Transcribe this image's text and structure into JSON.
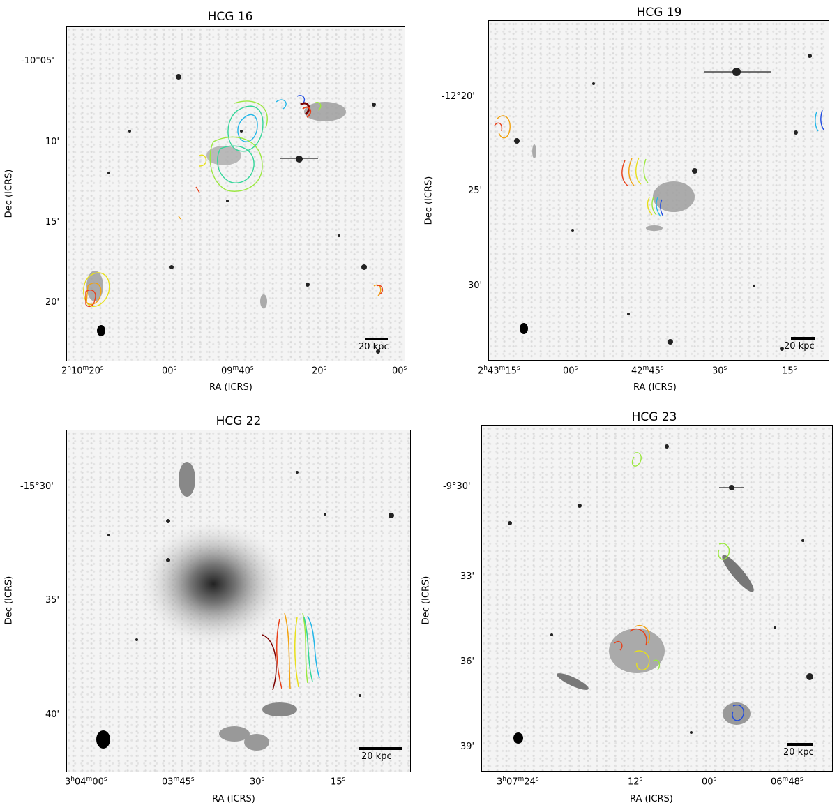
{
  "panels": {
    "p1": {
      "title": "HCG 16",
      "xlabel": "RA (ICRS)",
      "ylabel": "Dec (ICRS)",
      "yticks": [
        "-10°05'",
        "10'",
        "15'",
        "20'"
      ],
      "xticks": {
        "t0_a": "2",
        "t0_b": "h",
        "t0_c": "10",
        "t0_d": "m",
        "t0_e": "20",
        "t0_f": "s",
        "t1_a": "00",
        "t1_b": "s",
        "t2_a": "09",
        "t2_b": "m",
        "t2_c": "40",
        "t2_d": "s",
        "t3_a": "20",
        "t3_b": "s",
        "t4_a": "00",
        "t4_b": "s"
      },
      "scale": "20 kpc"
    },
    "p2": {
      "title": "HCG 19",
      "xlabel": "RA (ICRS)",
      "ylabel": "Dec (ICRS)",
      "yticks": [
        "-12°20'",
        "25'",
        "30'"
      ],
      "xticks": {
        "t0_a": "2",
        "t0_b": "h",
        "t0_c": "43",
        "t0_d": "m",
        "t0_e": "15",
        "t0_f": "s",
        "t1_a": "00",
        "t1_b": "s",
        "t2_a": "42",
        "t2_b": "m",
        "t2_c": "45",
        "t2_d": "s",
        "t3_a": "30",
        "t3_b": "s",
        "t4_a": "15",
        "t4_b": "s"
      },
      "scale": "20 kpc"
    },
    "p3": {
      "title": "HCG 22",
      "xlabel": "RA (ICRS)",
      "ylabel": "Dec (ICRS)",
      "yticks": [
        "-15°30'",
        "35'",
        "40'"
      ],
      "xticks": {
        "t0_a": "3",
        "t0_b": "h",
        "t0_c": "04",
        "t0_d": "m",
        "t0_e": "00",
        "t0_f": "s",
        "t1_a": "03",
        "t1_b": "m",
        "t1_c": "45",
        "t1_d": "s",
        "t2_a": "30",
        "t2_b": "s",
        "t3_a": "15",
        "t3_b": "s"
      },
      "scale": "20 kpc"
    },
    "p4": {
      "title": "HCG 23",
      "xlabel": "RA (ICRS)",
      "ylabel": "Dec (ICRS)",
      "yticks": [
        "-9°30'",
        "33'",
        "36'",
        "39'"
      ],
      "xticks": {
        "t0_a": "3",
        "t0_b": "h",
        "t0_c": "07",
        "t0_d": "m",
        "t0_e": "24",
        "t0_f": "s",
        "t1_a": "12",
        "t1_b": "s",
        "t2_a": "00",
        "t2_b": "s",
        "t3_a": "06",
        "t3_b": "m",
        "t3_c": "48",
        "t3_d": "s"
      },
      "scale": "20 kpc"
    }
  },
  "colors": {
    "background": "#ffffff",
    "sky": "#f4f4f4",
    "ink": "#000000",
    "contours": [
      "#7a0000",
      "#e8401a",
      "#f2a20f",
      "#e8e01a",
      "#9be840",
      "#35d69a",
      "#22b6e8",
      "#1f4be0"
    ]
  }
}
